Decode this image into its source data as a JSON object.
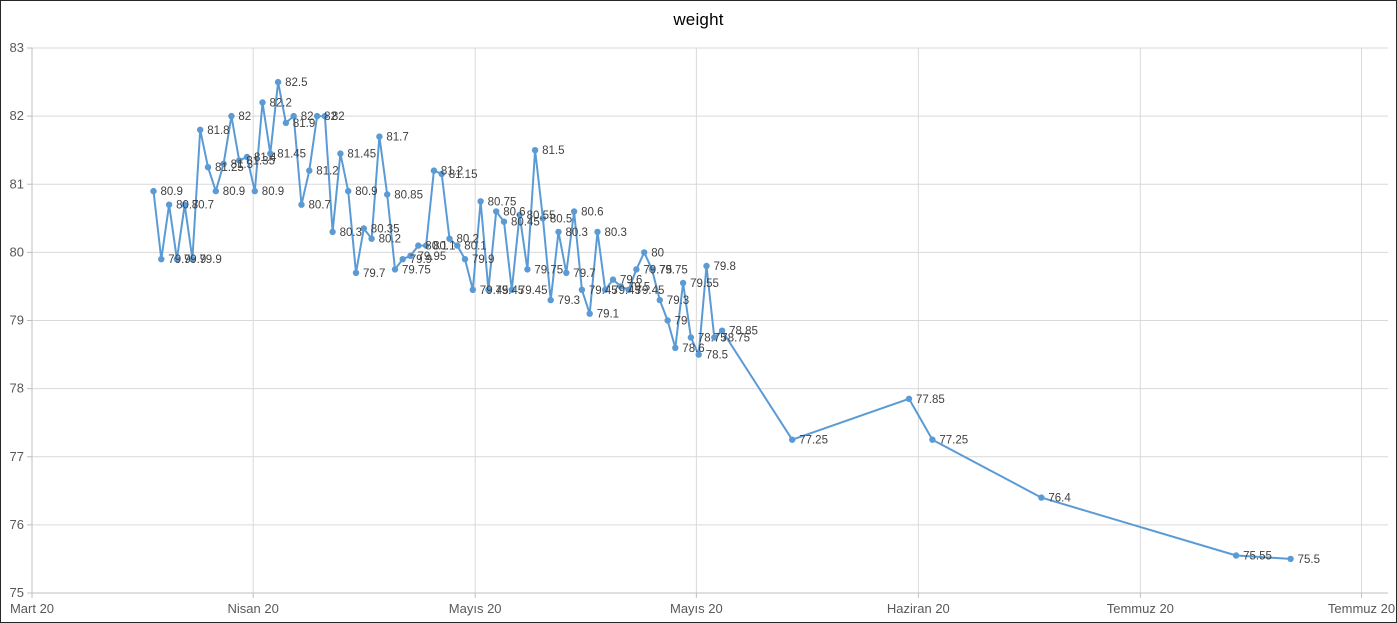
{
  "chart_data": {
    "type": "line",
    "title": "weight",
    "legend": "none",
    "grid": true,
    "title_color": "#595959",
    "line_color": "#5B9BD5",
    "marker_color": "#5B9BD5",
    "label_color": "#404040",
    "axis_text_color": "#595959",
    "grid_color": "#D9D9D9",
    "axis_line_color": "#BFBFBF",
    "ylim": [
      75,
      83
    ],
    "y_ticks": [
      83,
      82,
      81,
      80,
      79,
      78,
      77,
      76,
      75
    ],
    "xlim_days": [
      -15.6,
      158.5
    ],
    "x_ticks": [
      {
        "label": "Mart 20",
        "day": -15.6
      },
      {
        "label": "Nisan 20",
        "day": 12.8
      },
      {
        "label": "Mayıs 20",
        "day": 41.3
      },
      {
        "label": "Mayıs 20",
        "day": 69.7
      },
      {
        "label": "Haziran 20",
        "day": 98.2
      },
      {
        "label": "Temmuz 20",
        "day": 126.7
      },
      {
        "label": "Temmuz 20",
        "day": 155.1
      }
    ],
    "series": [
      {
        "name": "weight",
        "points": [
          [
            0,
            80.9
          ],
          [
            1,
            79.9
          ],
          [
            2,
            80.7
          ],
          [
            3,
            79.9
          ],
          [
            4,
            80.7
          ],
          [
            5,
            79.9
          ],
          [
            6,
            81.8
          ],
          [
            7,
            81.25
          ],
          [
            8,
            80.9
          ],
          [
            9,
            81.3
          ],
          [
            10,
            82
          ],
          [
            11,
            81.35
          ],
          [
            12,
            81.4
          ],
          [
            13,
            80.9
          ],
          [
            14,
            82.2
          ],
          [
            15,
            81.45
          ],
          [
            16,
            82.5
          ],
          [
            17,
            81.9
          ],
          [
            18,
            82
          ],
          [
            19,
            80.7
          ],
          [
            20,
            81.2
          ],
          [
            21,
            82
          ],
          [
            22,
            82
          ],
          [
            23,
            80.3
          ],
          [
            24,
            81.45
          ],
          [
            25,
            80.9
          ],
          [
            26,
            79.7
          ],
          [
            27,
            80.35
          ],
          [
            28,
            80.2
          ],
          [
            29,
            81.7
          ],
          [
            30,
            80.85
          ],
          [
            31,
            79.75
          ],
          [
            32,
            79.9
          ],
          [
            33,
            79.95
          ],
          [
            34,
            80.1
          ],
          [
            35,
            80.1
          ],
          [
            36,
            81.2
          ],
          [
            37,
            81.15
          ],
          [
            38,
            80.2
          ],
          [
            39,
            80.1
          ],
          [
            40,
            79.9
          ],
          [
            41,
            79.45
          ],
          [
            42,
            80.75
          ],
          [
            43,
            79.45
          ],
          [
            44,
            80.6
          ],
          [
            45,
            80.45
          ],
          [
            46,
            79.45
          ],
          [
            47,
            80.55
          ],
          [
            48,
            79.75
          ],
          [
            49,
            81.5
          ],
          [
            50,
            80.5
          ],
          [
            51,
            79.3
          ],
          [
            52,
            80.3
          ],
          [
            53,
            79.7
          ],
          [
            54,
            80.6
          ],
          [
            55,
            79.45
          ],
          [
            56,
            79.1
          ],
          [
            57,
            80.3
          ],
          [
            58,
            79.45
          ],
          [
            59,
            79.6
          ],
          [
            60,
            79.5
          ],
          [
            61,
            79.45
          ],
          [
            62,
            79.75
          ],
          [
            63,
            80
          ],
          [
            64,
            79.75
          ],
          [
            65,
            79.3
          ],
          [
            66,
            79
          ],
          [
            67,
            78.6
          ],
          [
            68,
            79.55
          ],
          [
            69,
            78.75
          ],
          [
            70,
            78.5
          ],
          [
            71,
            79.8
          ],
          [
            72,
            78.75
          ],
          [
            73,
            78.85
          ],
          [
            82,
            77.25
          ],
          [
            97,
            77.85
          ],
          [
            100,
            77.25
          ],
          [
            114,
            76.4
          ],
          [
            139,
            75.55
          ],
          [
            146,
            75.5
          ]
        ]
      }
    ]
  }
}
